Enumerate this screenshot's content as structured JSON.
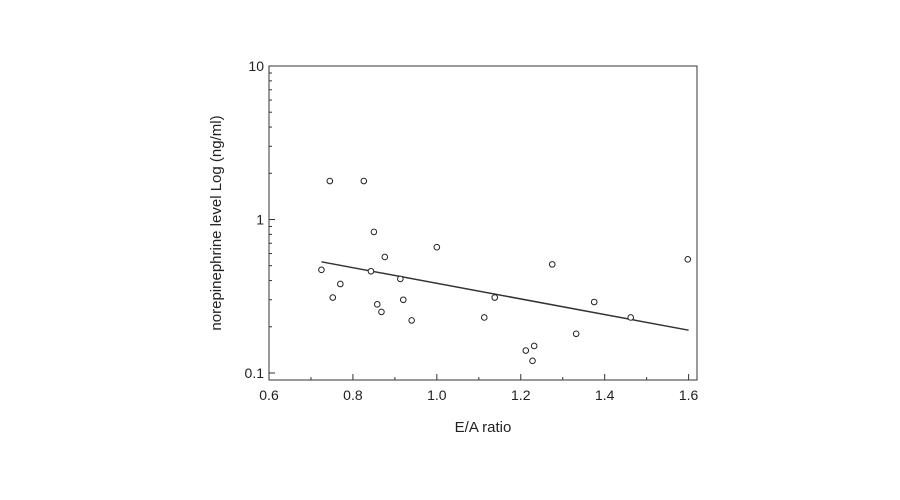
{
  "chart_data": {
    "type": "scatter",
    "title": "",
    "xlabel": "E/A ratio",
    "ylabel": "norepinephrine level Log (ng/ml)",
    "xlim": [
      0.6,
      1.62
    ],
    "ylim": [
      0.09,
      10
    ],
    "yscale": "log",
    "grid": false,
    "x_ticks": [
      0.6,
      0.8,
      1.0,
      1.2,
      1.4,
      1.6
    ],
    "x_tick_labels": [
      "0.6",
      "0.8",
      "1.0",
      "1.2",
      "1.4",
      "1.6"
    ],
    "y_ticks": [
      0.1,
      1,
      10
    ],
    "y_tick_labels": [
      "0.1",
      "1",
      "10"
    ],
    "series": [
      {
        "marker": "open-circle",
        "x": [
          0.725,
          0.745,
          0.752,
          0.77,
          0.826,
          0.843,
          0.85,
          0.858,
          0.868,
          0.876,
          0.913,
          0.92,
          0.94,
          1.0,
          1.113,
          1.138,
          1.212,
          1.228,
          1.232,
          1.275,
          1.332,
          1.375,
          1.462,
          1.598
        ],
        "y": [
          0.47,
          1.78,
          0.31,
          0.38,
          1.78,
          0.46,
          0.83,
          0.28,
          0.25,
          0.57,
          0.41,
          0.3,
          0.22,
          0.66,
          0.23,
          0.31,
          0.14,
          0.12,
          0.15,
          0.51,
          0.18,
          0.29,
          0.23,
          0.55
        ]
      }
    ],
    "trendline": {
      "x": [
        0.725,
        1.6
      ],
      "y": [
        0.53,
        0.19
      ]
    }
  }
}
